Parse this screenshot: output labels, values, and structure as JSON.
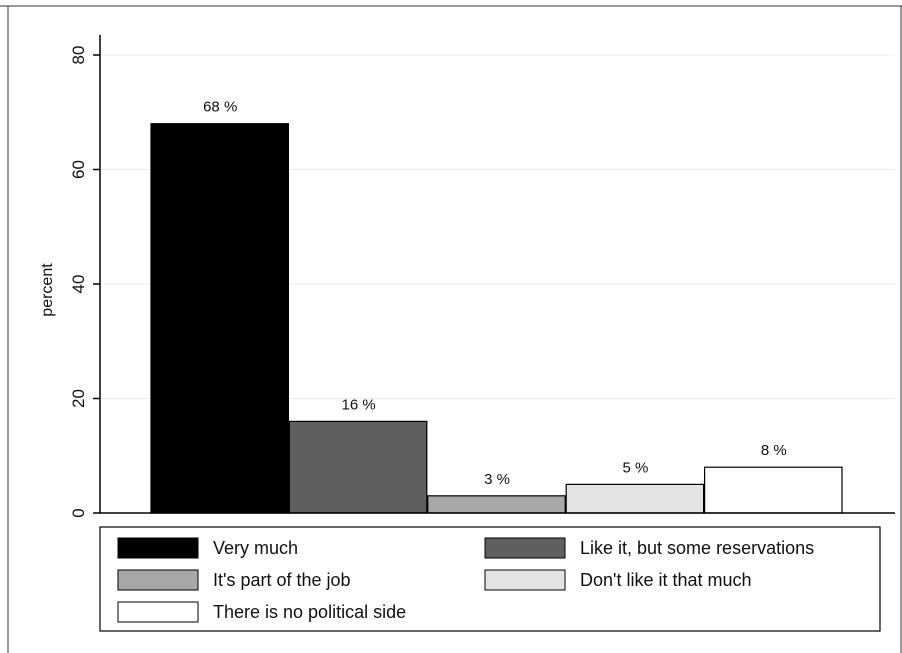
{
  "chart_data": {
    "type": "bar",
    "title": "",
    "xlabel": "",
    "ylabel": "percent",
    "ylim": [
      0,
      80
    ],
    "yticks": [
      0,
      20,
      40,
      60,
      80
    ],
    "grid": true,
    "legend_placement": "bottom",
    "series": [
      {
        "name": "Very much",
        "value": 68,
        "label": "68 %",
        "color": "#000000"
      },
      {
        "name": "Like it, but some reservations",
        "value": 16,
        "label": "16 %",
        "color": "#5f5f5f"
      },
      {
        "name": "It's part of the job",
        "value": 3,
        "label": "3 %",
        "color": "#a8a8a8"
      },
      {
        "name": "Don't like it that much",
        "value": 5,
        "label": "5 %",
        "color": "#e3e3e3"
      },
      {
        "name": "There is no political side",
        "value": 8,
        "label": "8 %",
        "color": "#ffffff"
      }
    ]
  }
}
